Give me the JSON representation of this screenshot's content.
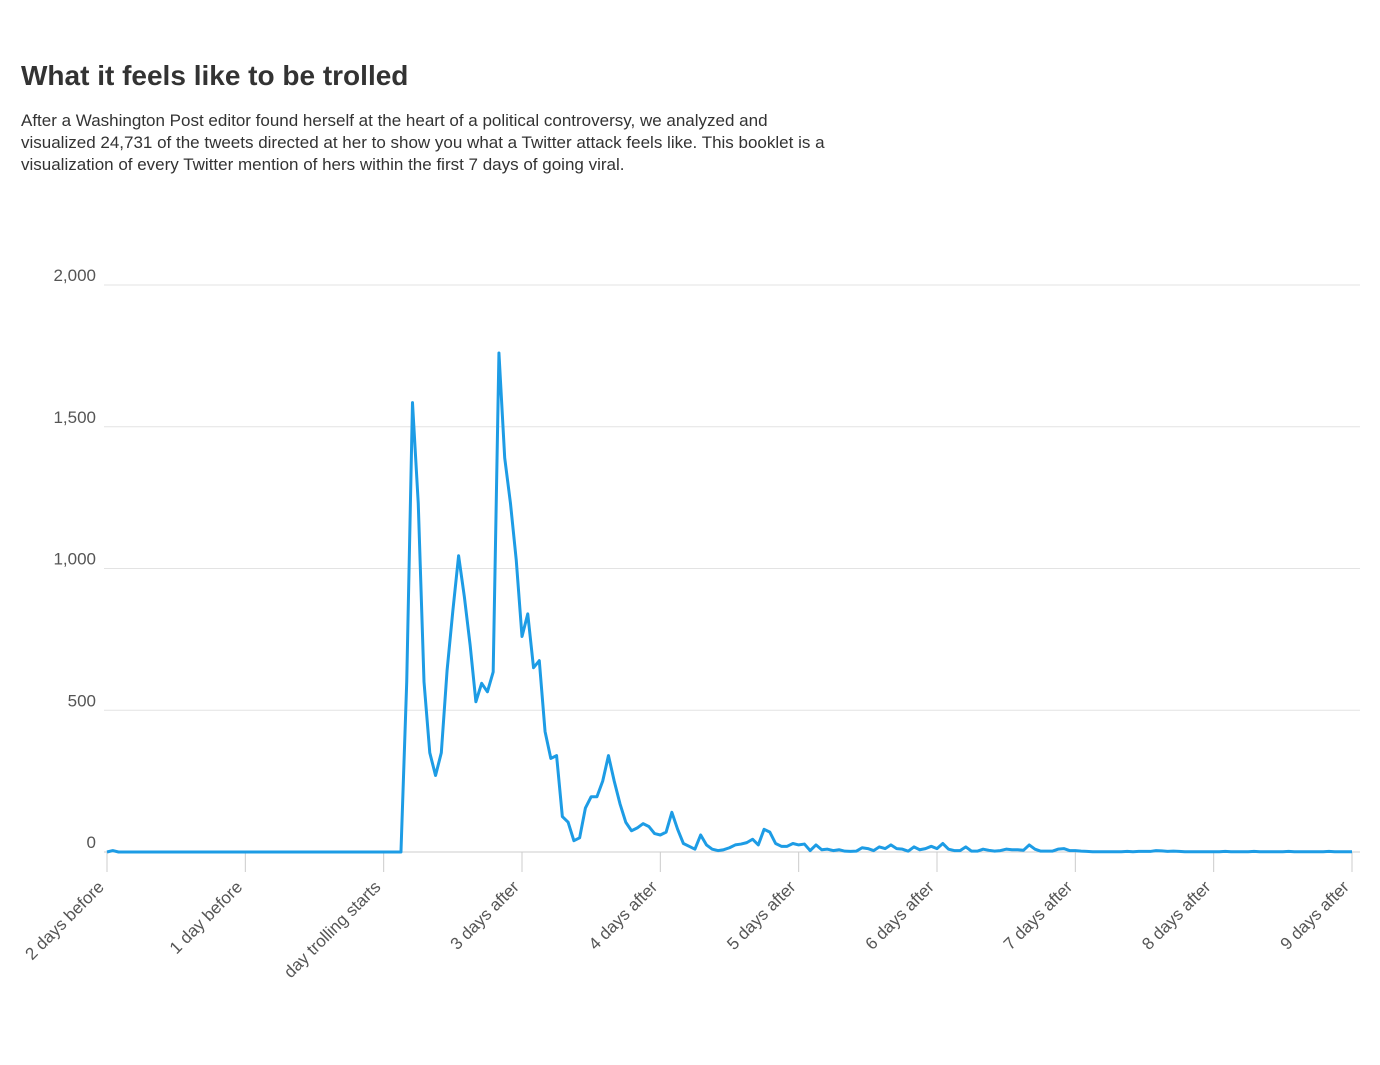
{
  "chart_data": {
    "type": "line",
    "title": "What it feels like to be trolled",
    "subtitle": "After a Washington Post editor found herself at the heart of a political controversy, we analyzed and visualized 24,731 of the tweets directed at her to show you what a Twitter attack feels like. This booklet is a visualization of every Twitter mention of hers within the first 7 days of going viral.",
    "color": "#1d9ce5",
    "x": [
      0,
      1,
      2,
      3,
      4,
      5,
      6,
      7,
      8,
      9,
      10,
      11,
      12,
      13,
      14,
      15,
      16,
      17,
      18,
      19,
      20,
      21,
      22,
      23,
      24,
      25,
      26,
      27,
      28,
      29,
      30,
      31,
      32,
      33,
      34,
      35,
      36,
      37,
      38,
      39,
      40,
      41,
      42,
      43,
      44,
      45,
      46,
      47,
      48,
      49,
      50,
      51,
      52,
      53,
      54,
      55,
      56,
      57,
      58,
      59,
      60,
      61,
      62,
      63,
      64,
      65,
      66,
      67,
      68,
      69,
      70,
      71,
      72,
      73,
      74,
      75,
      76,
      77,
      78,
      79,
      80,
      81,
      82,
      83,
      84,
      85,
      86,
      87,
      88,
      89,
      90,
      91,
      92,
      93,
      94,
      95,
      96,
      97,
      98,
      99,
      100,
      101,
      102,
      103,
      104,
      105,
      106,
      107,
      108,
      109,
      110,
      111,
      112,
      113,
      114,
      115,
      116,
      117,
      118,
      119,
      120,
      121,
      122,
      123,
      124,
      125,
      126,
      127,
      128,
      129,
      130,
      131,
      132,
      133,
      134,
      135,
      136,
      137,
      138,
      139,
      140,
      141,
      142,
      143,
      144,
      145,
      146,
      147,
      148,
      149,
      150,
      151,
      152,
      153,
      154,
      155,
      156,
      157,
      158,
      159,
      160,
      161,
      162,
      163,
      164,
      165,
      166,
      167,
      168,
      169,
      170,
      171,
      172,
      173,
      174,
      175,
      176,
      177,
      178,
      179,
      180,
      181,
      182,
      183,
      184,
      185,
      186,
      187,
      188,
      189,
      190,
      191,
      192,
      193,
      194,
      195,
      196,
      197,
      198,
      199,
      200,
      201,
      202,
      203,
      204,
      205,
      206,
      207,
      208,
      209,
      210,
      211,
      212,
      213,
      214,
      215,
      216
    ],
    "values": [
      0,
      5,
      0,
      0,
      0,
      0,
      0,
      0,
      0,
      0,
      0,
      0,
      0,
      0,
      0,
      0,
      0,
      0,
      0,
      0,
      0,
      0,
      0,
      0,
      0,
      0,
      0,
      0,
      0,
      0,
      0,
      0,
      0,
      0,
      0,
      0,
      0,
      0,
      0,
      0,
      0,
      0,
      0,
      0,
      0,
      0,
      0,
      0,
      0,
      0,
      0,
      0,
      600,
      1585,
      1230,
      600,
      350,
      270,
      350,
      640,
      850,
      1045,
      900,
      730,
      530,
      595,
      565,
      635,
      1760,
      1390,
      1230,
      1030,
      760,
      840,
      650,
      675,
      425,
      330,
      340,
      125,
      105,
      40,
      50,
      155,
      195,
      195,
      250,
      340,
      250,
      170,
      105,
      75,
      85,
      100,
      90,
      65,
      60,
      70,
      140,
      80,
      30,
      20,
      10,
      60,
      25,
      10,
      5,
      8,
      15,
      25,
      28,
      33,
      45,
      25,
      80,
      70,
      30,
      20,
      20,
      30,
      25,
      28,
      5,
      25,
      8,
      10,
      5,
      8,
      3,
      2,
      3,
      15,
      12,
      5,
      18,
      12,
      25,
      12,
      10,
      3,
      18,
      8,
      12,
      20,
      12,
      30,
      10,
      5,
      5,
      18,
      3,
      3,
      10,
      6,
      3,
      5,
      10,
      8,
      8,
      6,
      25,
      10,
      3,
      3,
      3,
      10,
      12,
      5,
      5,
      3,
      2,
      1,
      1,
      1,
      1,
      1,
      1,
      2,
      1,
      2,
      2,
      2,
      5,
      4,
      2,
      3,
      2,
      1,
      1,
      1,
      1,
      1,
      1,
      1,
      2,
      1,
      1,
      1,
      1,
      2,
      1,
      1,
      1,
      1,
      1,
      2,
      1,
      1,
      1,
      1,
      1,
      1,
      2,
      1,
      1,
      1,
      1
    ],
    "xlim": [
      0,
      216
    ],
    "xticks": [
      {
        "value": 0,
        "label": "2 days before"
      },
      {
        "value": 24,
        "label": "1 day before"
      },
      {
        "value": 48,
        "label": "day trolling starts"
      },
      {
        "value": 72,
        "label": "3 days after"
      },
      {
        "value": 96,
        "label": "4 days after"
      },
      {
        "value": 120,
        "label": "5 days after"
      },
      {
        "value": 144,
        "label": "6 days after"
      },
      {
        "value": 168,
        "label": "7 days after"
      },
      {
        "value": 192,
        "label": "8 days after"
      },
      {
        "value": 216,
        "label": "9 days after"
      }
    ],
    "ylim": [
      0,
      2000
    ],
    "yticks": [
      0,
      500,
      {
        "value": 1000,
        "label": "1,000"
      },
      {
        "value": 1500,
        "label": "1,500"
      },
      {
        "value": 2000,
        "label": "2,000"
      }
    ],
    "grid": true
  }
}
